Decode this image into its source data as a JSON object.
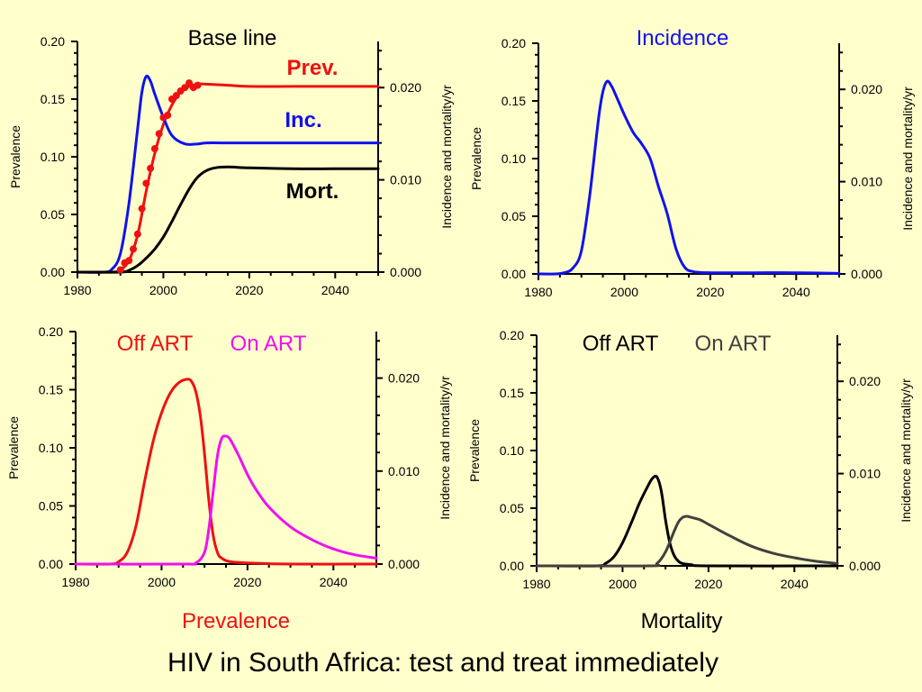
{
  "main_title": "HIV in South Africa: test and treat immediately",
  "colors": {
    "background": "#FFFFCC",
    "prevalence": "#EE1111",
    "incidence": "#1111EE",
    "mortality": "#000000",
    "off_art": "#EE1111",
    "on_art": "#EE11EE",
    "mort_off_art": "#000000",
    "mort_on_art": "#404040"
  },
  "chart_data": [
    {
      "type": "line",
      "title": "Base line",
      "title_color": "#000000",
      "xlabel": "",
      "ylabel": "Prevalence",
      "y2label": "Incidence and mortality/yr",
      "xlim": [
        1980,
        2050
      ],
      "ylim": [
        0,
        0.2
      ],
      "y2lim": [
        0,
        0.025
      ],
      "x_ticks": [
        "1980",
        "2000",
        "2020",
        "2040"
      ],
      "y_ticks": [
        "0.00",
        "0.05",
        "0.10",
        "0.15",
        "0.20"
      ],
      "y2_ticks": [
        "0.000",
        "0.010",
        "0.020"
      ],
      "legend": [
        {
          "label": "Prev.",
          "color": "#EE1111"
        },
        {
          "label": "Inc.",
          "color": "#1111EE"
        },
        {
          "label": "Mort.",
          "color": "#000000"
        }
      ],
      "series": [
        {
          "name": "Prev.",
          "color": "#EE1111",
          "axis": "left",
          "x": [
            1980,
            1988,
            1990,
            1992,
            1994,
            1996,
            1998,
            2000,
            2002,
            2004,
            2006,
            2008,
            2010,
            2015,
            2020,
            2030,
            2040,
            2050
          ],
          "values": [
            0,
            0,
            0.002,
            0.01,
            0.032,
            0.07,
            0.103,
            0.128,
            0.145,
            0.156,
            0.161,
            0.163,
            0.163,
            0.162,
            0.161,
            0.161,
            0.161,
            0.161
          ]
        },
        {
          "name": "Inc.",
          "color": "#1111EE",
          "axis": "right",
          "x": [
            1980,
            1986,
            1988,
            1990,
            1992,
            1994,
            1995,
            1996,
            1997,
            1998,
            2000,
            2002,
            2005,
            2008,
            2010,
            2015,
            2020,
            2030,
            2040,
            2050
          ],
          "values": [
            0,
            0,
            0.0003,
            0.002,
            0.0075,
            0.0155,
            0.0195,
            0.0212,
            0.0207,
            0.0193,
            0.0168,
            0.0148,
            0.0139,
            0.0139,
            0.014,
            0.014,
            0.014,
            0.014,
            0.014,
            0.014
          ]
        },
        {
          "name": "Mort.",
          "color": "#000000",
          "axis": "right",
          "x": [
            1980,
            1990,
            1992,
            1994,
            1996,
            1998,
            2000,
            2002,
            2004,
            2006,
            2008,
            2010,
            2012,
            2015,
            2020,
            2030,
            2040,
            2050
          ],
          "values": [
            0,
            0,
            0.0002,
            0.0007,
            0.0015,
            0.0025,
            0.0038,
            0.0055,
            0.0073,
            0.009,
            0.0103,
            0.011,
            0.0113,
            0.0114,
            0.0113,
            0.0112,
            0.0112,
            0.0112
          ]
        },
        {
          "name": "Prev. data",
          "color": "#EE1111",
          "axis": "left",
          "style": "points",
          "x": [
            1990,
            1991,
            1992,
            1993,
            1994,
            1995,
            1996,
            1997,
            1998,
            1999,
            2000,
            2001,
            2002,
            2003,
            2004,
            2005,
            2006,
            2007,
            2008
          ],
          "values": [
            0.002,
            0.008,
            0.01,
            0.02,
            0.033,
            0.055,
            0.077,
            0.09,
            0.107,
            0.12,
            0.134,
            0.136,
            0.15,
            0.153,
            0.157,
            0.16,
            0.164,
            0.16,
            0.162
          ]
        }
      ]
    },
    {
      "type": "line",
      "title": "Incidence",
      "title_color": "#1111EE",
      "xlabel": "",
      "ylabel": "Prevalence",
      "y2label": "Incidence and mortality/yr",
      "xlim": [
        1980,
        2050
      ],
      "ylim": [
        0,
        0.2
      ],
      "y2lim": [
        0,
        0.025
      ],
      "x_ticks": [
        "1980",
        "2000",
        "2020",
        "2040"
      ],
      "y_ticks": [
        "0.00",
        "0.05",
        "0.10",
        "0.15",
        "0.20"
      ],
      "y2_ticks": [
        "0.000",
        "0.010",
        "0.020"
      ],
      "legend": [],
      "series": [
        {
          "color": "#1111EE",
          "axis": "left",
          "x": [
            1980,
            1984,
            1986,
            1988,
            1990,
            1992,
            1994,
            1995,
            1996,
            1997,
            1998,
            2000,
            2002,
            2004,
            2006,
            2008,
            2010,
            2012,
            2014,
            2016,
            2020,
            2030,
            2040,
            2050
          ],
          "values": [
            0,
            0,
            0.001,
            0.005,
            0.02,
            0.07,
            0.135,
            0.158,
            0.167,
            0.163,
            0.155,
            0.138,
            0.123,
            0.113,
            0.1,
            0.075,
            0.052,
            0.022,
            0.006,
            0.002,
            0.001,
            0.001,
            0.001,
            0.0005
          ]
        }
      ]
    },
    {
      "type": "line",
      "title": "",
      "xlabel": "",
      "ylabel": "Prevalence",
      "y2label": "Incidence and mortality/yr",
      "xlim": [
        1980,
        2050
      ],
      "ylim": [
        0,
        0.2
      ],
      "y2lim": [
        0,
        0.025
      ],
      "x_ticks": [
        "1980",
        "2000",
        "2020",
        "2040"
      ],
      "y_ticks": [
        "0.00",
        "0.05",
        "0.10",
        "0.15",
        "0.20"
      ],
      "y2_ticks": [
        "0.000",
        "0.010",
        "0.020"
      ],
      "legend": [
        {
          "label": "Off ART",
          "color": "#EE1111"
        },
        {
          "label": "On ART",
          "color": "#EE11EE"
        }
      ],
      "caption": "Prevalence",
      "caption_color": "#EE1111",
      "series": [
        {
          "name": "Off ART",
          "color": "#EE1111",
          "axis": "left",
          "x": [
            1980,
            1988,
            1990,
            1992,
            1994,
            1996,
            1998,
            2000,
            2002,
            2004,
            2006,
            2007,
            2008,
            2009,
            2010,
            2011,
            2012,
            2013,
            2014,
            2016,
            2020,
            2030,
            2050
          ],
          "values": [
            0,
            0,
            0.002,
            0.01,
            0.032,
            0.07,
            0.105,
            0.13,
            0.147,
            0.156,
            0.159,
            0.157,
            0.148,
            0.128,
            0.095,
            0.055,
            0.025,
            0.01,
            0.005,
            0.002,
            0.001,
            0,
            0
          ]
        },
        {
          "name": "On ART",
          "color": "#EE11EE",
          "axis": "left",
          "x": [
            1980,
            2005,
            2008,
            2010,
            2011,
            2012,
            2013,
            2014,
            2015,
            2016,
            2018,
            2020,
            2022,
            2025,
            2030,
            2035,
            2040,
            2045,
            2050
          ],
          "values": [
            0,
            0,
            0.001,
            0.01,
            0.03,
            0.062,
            0.093,
            0.108,
            0.11,
            0.107,
            0.093,
            0.077,
            0.064,
            0.049,
            0.032,
            0.021,
            0.013,
            0.008,
            0.005
          ]
        }
      ]
    },
    {
      "type": "line",
      "title": "",
      "xlabel": "",
      "ylabel": "Prevalence",
      "y2label": "Incidence and mortality/yr",
      "xlim": [
        1980,
        2050
      ],
      "ylim": [
        0,
        0.2
      ],
      "y2lim": [
        0,
        0.025
      ],
      "x_ticks": [
        "1980",
        "2000",
        "2020",
        "2040"
      ],
      "y_ticks": [
        "0.00",
        "0.05",
        "0.10",
        "0.15",
        "0.20"
      ],
      "y2_ticks": [
        "0.000",
        "0.010",
        "0.020"
      ],
      "legend": [
        {
          "label": "Off ART",
          "color": "#000000"
        },
        {
          "label": "On ART",
          "color": "#404040"
        }
      ],
      "caption": "Mortality",
      "caption_color": "#000000",
      "series": [
        {
          "name": "Off ART",
          "color": "#000000",
          "axis": "left",
          "x": [
            1980,
            1994,
            1996,
            1998,
            2000,
            2002,
            2004,
            2006,
            2007,
            2008,
            2009,
            2010,
            2011,
            2012,
            2013,
            2014,
            2016,
            2020,
            2050
          ],
          "values": [
            0,
            0,
            0.002,
            0.008,
            0.02,
            0.037,
            0.055,
            0.07,
            0.076,
            0.077,
            0.065,
            0.04,
            0.02,
            0.009,
            0.004,
            0.002,
            0.001,
            0,
            0
          ]
        },
        {
          "name": "On ART",
          "color": "#404040",
          "axis": "left",
          "x": [
            1980,
            2006,
            2008,
            2010,
            2012,
            2013,
            2014,
            2015,
            2016,
            2018,
            2020,
            2025,
            2030,
            2035,
            2040,
            2045,
            2050
          ],
          "values": [
            0,
            0,
            0.002,
            0.012,
            0.03,
            0.038,
            0.042,
            0.043,
            0.042,
            0.04,
            0.036,
            0.026,
            0.017,
            0.011,
            0.007,
            0.004,
            0.002
          ]
        }
      ]
    }
  ]
}
